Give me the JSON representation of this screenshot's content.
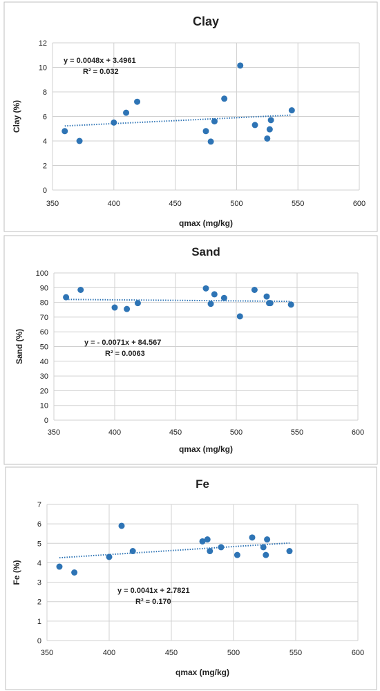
{
  "colors": {
    "point": "#2e74b5",
    "trend": "#2e74b5",
    "grid": "#d0d0d0",
    "frame": "#bfbfbf"
  },
  "chart_data": [
    {
      "type": "scatter",
      "title": "Clay",
      "xlabel": "qmax (mg/kg)",
      "ylabel": "Clay (%)",
      "xlim": [
        350,
        600
      ],
      "ylim": [
        0,
        12
      ],
      "xticks": [
        "350",
        "400",
        "450",
        "500",
        "550",
        "600"
      ],
      "yticks": [
        "0",
        "2",
        "4",
        "6",
        "8",
        "10",
        "12"
      ],
      "grid": true,
      "trendline": {
        "type": "linear",
        "slope": 0.0048,
        "intercept": 3.4961,
        "x_range": [
          360,
          545
        ]
      },
      "equation": "y = 0.0048x + 3.4961",
      "r2": "R² = 0.032",
      "points": [
        {
          "x": 360,
          "y": 4.8
        },
        {
          "x": 372,
          "y": 4.0
        },
        {
          "x": 400,
          "y": 5.5
        },
        {
          "x": 410,
          "y": 6.3
        },
        {
          "x": 419,
          "y": 7.2
        },
        {
          "x": 475,
          "y": 4.8
        },
        {
          "x": 479,
          "y": 3.95
        },
        {
          "x": 482,
          "y": 5.6
        },
        {
          "x": 490,
          "y": 7.45
        },
        {
          "x": 503,
          "y": 10.15
        },
        {
          "x": 515,
          "y": 5.3
        },
        {
          "x": 525,
          "y": 4.2
        },
        {
          "x": 527,
          "y": 4.95
        },
        {
          "x": 528,
          "y": 5.7
        },
        {
          "x": 545,
          "y": 6.5
        }
      ]
    },
    {
      "type": "scatter",
      "title": "Sand",
      "xlabel": "qmax (mg/kg)",
      "ylabel": "Sand (%)",
      "xlim": [
        350,
        600
      ],
      "ylim": [
        0,
        100
      ],
      "xticks": [
        "350",
        "400",
        "450",
        "500",
        "550",
        "600"
      ],
      "yticks": [
        "0",
        "10",
        "20",
        "30",
        "40",
        "50",
        "60",
        "70",
        "80",
        "90",
        "100"
      ],
      "grid": true,
      "trendline": {
        "type": "linear",
        "slope": -0.0071,
        "intercept": 84.567,
        "x_range": [
          360,
          545
        ]
      },
      "equation": "y = - 0.0071x + 84.567",
      "r2": "R² = 0.0063",
      "points": [
        {
          "x": 360,
          "y": 83.5
        },
        {
          "x": 372,
          "y": 88.5
        },
        {
          "x": 400,
          "y": 76.5
        },
        {
          "x": 410,
          "y": 75.5
        },
        {
          "x": 419,
          "y": 79.5
        },
        {
          "x": 475,
          "y": 89.5
        },
        {
          "x": 479,
          "y": 79.0
        },
        {
          "x": 482,
          "y": 85.5
        },
        {
          "x": 490,
          "y": 83.0
        },
        {
          "x": 503,
          "y": 70.5
        },
        {
          "x": 515,
          "y": 88.5
        },
        {
          "x": 525,
          "y": 84.0
        },
        {
          "x": 527,
          "y": 79.5
        },
        {
          "x": 528,
          "y": 79.5
        },
        {
          "x": 545,
          "y": 78.5
        }
      ]
    },
    {
      "type": "scatter",
      "title": "Fe",
      "xlabel": "qmax (mg/kg)",
      "ylabel": "Fe (%)",
      "xlim": [
        350,
        600
      ],
      "ylim": [
        0,
        7
      ],
      "xticks": [
        "350",
        "400",
        "450",
        "500",
        "550",
        "600"
      ],
      "yticks": [
        "0",
        "1",
        "2",
        "3",
        "4",
        "5",
        "6",
        "7"
      ],
      "grid": true,
      "trendline": {
        "type": "linear",
        "slope": 0.0041,
        "intercept": 2.7821,
        "x_range": [
          360,
          545
        ]
      },
      "equation": "y = 0.0041x + 2.7821",
      "r2": "R² = 0.170",
      "points": [
        {
          "x": 360,
          "y": 3.8
        },
        {
          "x": 372,
          "y": 3.5
        },
        {
          "x": 400,
          "y": 4.3
        },
        {
          "x": 410,
          "y": 5.9
        },
        {
          "x": 419,
          "y": 4.6
        },
        {
          "x": 475,
          "y": 5.1
        },
        {
          "x": 479,
          "y": 5.2
        },
        {
          "x": 481,
          "y": 4.6
        },
        {
          "x": 490,
          "y": 4.8
        },
        {
          "x": 503,
          "y": 4.4
        },
        {
          "x": 515,
          "y": 5.3
        },
        {
          "x": 524,
          "y": 4.8
        },
        {
          "x": 526,
          "y": 4.4
        },
        {
          "x": 527,
          "y": 5.2
        },
        {
          "x": 545,
          "y": 4.6
        }
      ]
    }
  ]
}
